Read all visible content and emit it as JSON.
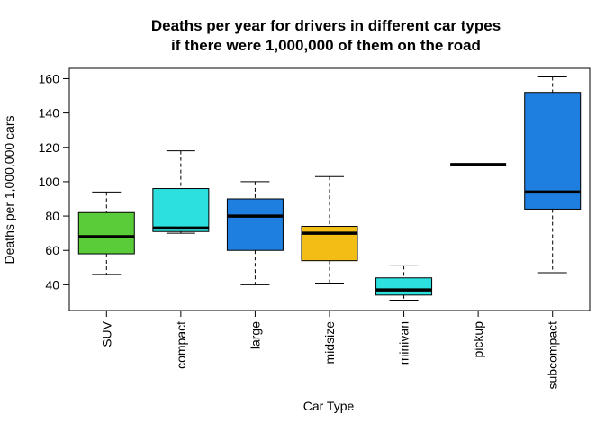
{
  "chart_data": {
    "type": "box",
    "title_lines": [
      "Deaths per year for drivers in different car types",
      "if there were 1,000,000 of them on the road"
    ],
    "xlabel": "Car Type",
    "ylabel": "Deaths per 1,000,000 cars",
    "ylim": [
      25,
      166
    ],
    "yticks": [
      40,
      60,
      80,
      100,
      120,
      140,
      160
    ],
    "categories": [
      "SUV",
      "compact",
      "large",
      "midsize",
      "minivan",
      "pickup",
      "subcompact"
    ],
    "boxes": [
      {
        "category": "SUV",
        "min": 46,
        "q1": 58,
        "median": 68,
        "q3": 82,
        "max": 94,
        "color": "#5ACC3A"
      },
      {
        "category": "compact",
        "min": 70,
        "q1": 71,
        "median": 73,
        "q3": 96,
        "max": 118,
        "color": "#2CE0E0"
      },
      {
        "category": "large",
        "min": 40,
        "q1": 60,
        "median": 80,
        "q3": 90,
        "max": 100,
        "color": "#1E7FE0"
      },
      {
        "category": "midsize",
        "min": 41,
        "q1": 54,
        "median": 70,
        "q3": 74,
        "max": 103,
        "color": "#F2BE16"
      },
      {
        "category": "minivan",
        "min": 31,
        "q1": 34,
        "median": 37,
        "q3": 44,
        "max": 51,
        "color": "#2CE0E0"
      },
      {
        "category": "pickup",
        "min": 110,
        "q1": 110,
        "median": 110,
        "q3": 110,
        "max": 110,
        "color": "#2CE0E0"
      },
      {
        "category": "subcompact",
        "min": 47,
        "q1": 84,
        "median": 94,
        "q3": 152,
        "max": 161,
        "color": "#1E7FE0"
      }
    ],
    "grid": false,
    "legend": "none"
  }
}
